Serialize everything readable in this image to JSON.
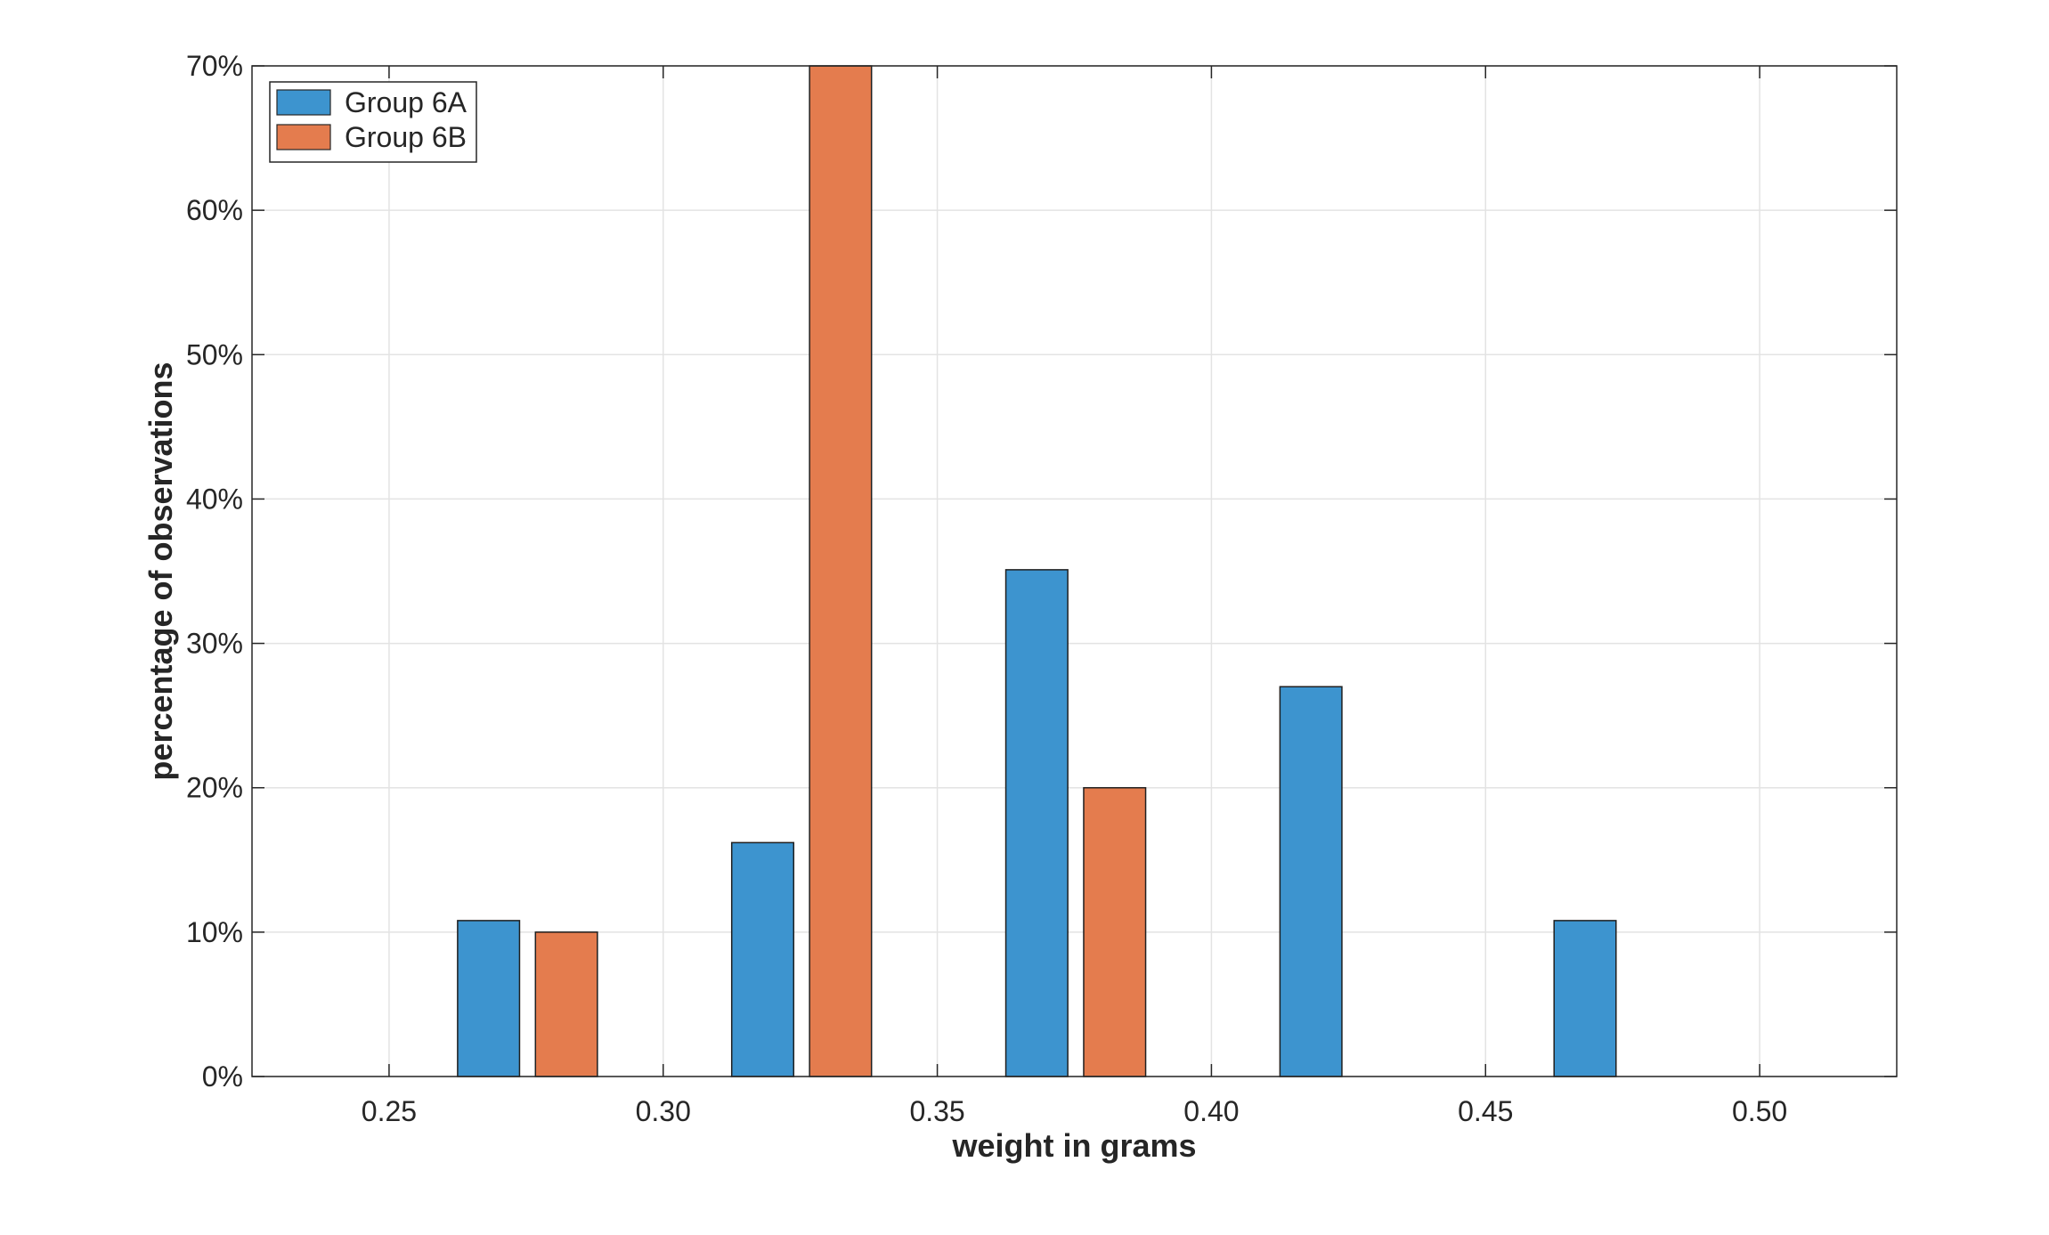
{
  "chart_data": {
    "type": "bar",
    "xlabel": "weight in grams",
    "ylabel": "percentage of observations",
    "xlim": [
      0.225,
      0.525
    ],
    "ylim": [
      0,
      70
    ],
    "x_ticks": [
      0.25,
      0.3,
      0.35,
      0.4,
      0.45,
      0.5
    ],
    "x_tick_labels": [
      "0.25",
      "0.30",
      "0.35",
      "0.40",
      "0.45",
      "0.50"
    ],
    "y_ticks": [
      0,
      10,
      20,
      30,
      40,
      50,
      60,
      70
    ],
    "y_tick_labels": [
      "0%",
      "10%",
      "20%",
      "30%",
      "40%",
      "50%",
      "60%",
      "70%"
    ],
    "grid": true,
    "legend_position": "top-left",
    "series": [
      {
        "name": "Group 6A",
        "color": "#3d94cf",
        "bars": [
          {
            "x_start": 0.2625,
            "x_end": 0.2738,
            "value": 10.8
          },
          {
            "x_start": 0.3125,
            "x_end": 0.3238,
            "value": 16.2
          },
          {
            "x_start": 0.3625,
            "x_end": 0.3738,
            "value": 35.1
          },
          {
            "x_start": 0.4125,
            "x_end": 0.4238,
            "value": 27.0
          },
          {
            "x_start": 0.4625,
            "x_end": 0.4738,
            "value": 10.8
          }
        ]
      },
      {
        "name": "Group 6B",
        "color": "#e47c4e",
        "bars": [
          {
            "x_start": 0.2767,
            "x_end": 0.288,
            "value": 10.0
          },
          {
            "x_start": 0.3267,
            "x_end": 0.338,
            "value": 70.0
          },
          {
            "x_start": 0.3767,
            "x_end": 0.388,
            "value": 20.0
          }
        ]
      }
    ]
  }
}
